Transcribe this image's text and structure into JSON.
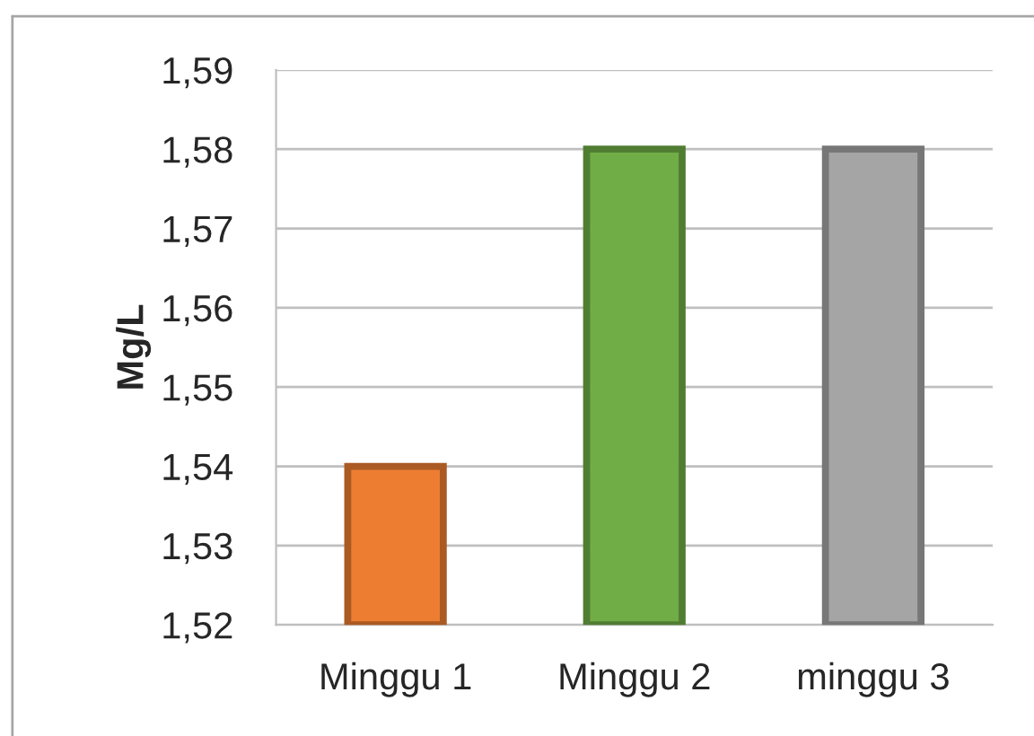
{
  "chart_data": {
    "type": "bar",
    "ylabel": "Mg/L",
    "categories": [
      "Minggu 1",
      "Minggu 2",
      "minggu 3"
    ],
    "values": [
      1.54,
      1.58,
      1.58
    ],
    "colors": [
      "#ed7d31",
      "#70ad47",
      "#a5a5a5"
    ],
    "ylim": [
      1.52,
      1.59
    ],
    "yticks": [
      {
        "value": 1.52,
        "label": "1,52"
      },
      {
        "value": 1.53,
        "label": "1,53"
      },
      {
        "value": 1.54,
        "label": "1,54"
      },
      {
        "value": 1.55,
        "label": "1,55"
      },
      {
        "value": 1.56,
        "label": "1,56"
      },
      {
        "value": 1.57,
        "label": "1,57"
      },
      {
        "value": 1.58,
        "label": "1,58"
      },
      {
        "value": 1.59,
        "label": "1,59"
      }
    ],
    "grid": "y"
  }
}
